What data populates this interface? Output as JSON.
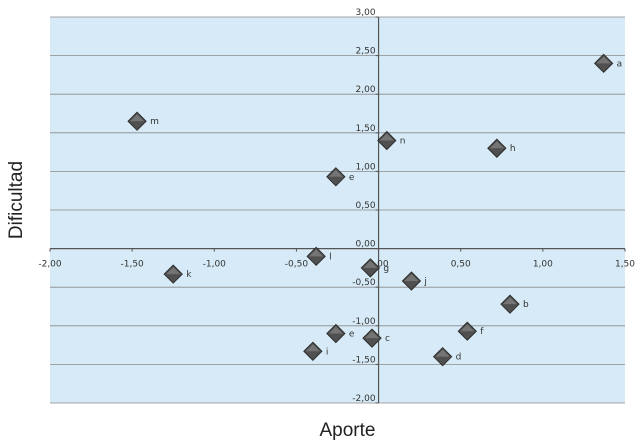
{
  "chart_data": {
    "type": "scatter",
    "title": "",
    "xlabel": "Aporte",
    "ylabel": "Dificultad",
    "xlim": [
      -2.0,
      1.5
    ],
    "ylim": [
      -2.0,
      3.0
    ],
    "x_ticks": [
      "-2,00",
      "-1,50",
      "-1,00",
      "-0,50",
      "0,00",
      "0,50",
      "1,00",
      "1,50"
    ],
    "y_ticks": [
      "-2,00",
      "-1,50",
      "-1,00",
      "-0,50",
      "0,00",
      "0,50",
      "1,00",
      "1,50",
      "2,00",
      "2,50",
      "3,00"
    ],
    "grid": true,
    "background_color": "#d6ebf7",
    "marker_color": "#505050",
    "points": [
      {
        "label": "a",
        "x": 1.37,
        "y": 2.4
      },
      {
        "label": "m",
        "x": -1.47,
        "y": 1.65
      },
      {
        "label": "n",
        "x": 0.05,
        "y": 1.4
      },
      {
        "label": "h",
        "x": 0.72,
        "y": 1.3
      },
      {
        "label": "e",
        "x": -0.26,
        "y": 0.93
      },
      {
        "label": "l",
        "x": -0.38,
        "y": -0.1
      },
      {
        "label": "g",
        "x": -0.05,
        "y": -0.25
      },
      {
        "label": "k",
        "x": -1.25,
        "y": -0.33
      },
      {
        "label": "j",
        "x": 0.2,
        "y": -0.42
      },
      {
        "label": "b",
        "x": 0.8,
        "y": -0.72
      },
      {
        "label": "f",
        "x": 0.54,
        "y": -1.07
      },
      {
        "label": "c",
        "x": -0.04,
        "y": -1.16
      },
      {
        "label": "e",
        "x": -0.26,
        "y": -1.1
      },
      {
        "label": "i",
        "x": -0.4,
        "y": -1.33
      },
      {
        "label": "d",
        "x": 0.39,
        "y": -1.4
      }
    ]
  }
}
